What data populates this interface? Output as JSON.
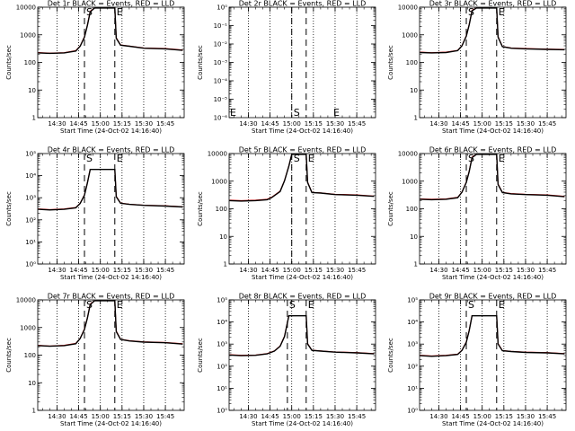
{
  "chart_data": [
    {
      "type": "line",
      "title": "Det 1r BLACK = Events, RED = LLD",
      "xlabel": "Start Time (24-Oct-02 14:16:40)",
      "ylabel": "Counts/sec",
      "scale": "log",
      "ytick_labels": [
        "1",
        "10",
        "100",
        "1000",
        "10000"
      ],
      "ylim": [
        1,
        15000
      ],
      "xtick_labels": [
        "14:30",
        "14:45",
        "15:00",
        "15:15",
        "15:30",
        "15:45"
      ],
      "markers": {
        "start": "S",
        "end": "E"
      },
      "vlines_dotted": [
        "14:30",
        "14:45",
        "15:00",
        "15:15",
        "15:30",
        "15:45"
      ],
      "vlines_dashed": [
        "14:49",
        "15:10"
      ],
      "series": [
        {
          "color": "#000000",
          "x": [
            "14:17",
            "14:25",
            "14:35",
            "14:43",
            "14:46",
            "14:49",
            "14:51",
            "14:53",
            "14:56",
            "15:00",
            "15:05",
            "15:08",
            "15:10",
            "15:11",
            "15:14",
            "15:20",
            "15:30",
            "15:45",
            "15:57"
          ],
          "y": [
            280,
            270,
            280,
            330,
            500,
            1100,
            3000,
            10000,
            14000,
            14000,
            14000,
            14000,
            14000,
            1000,
            550,
            500,
            420,
            400,
            350
          ]
        },
        {
          "color": "#e00000",
          "x": [
            "14:17",
            "14:25",
            "14:35",
            "14:43",
            "14:46",
            "14:49",
            "14:51",
            "14:53",
            "14:56",
            "15:00",
            "15:05",
            "15:08",
            "15:10",
            "15:11",
            "15:14",
            "15:20",
            "15:30",
            "15:45",
            "15:57"
          ],
          "y": [
            290,
            275,
            285,
            340,
            510,
            1150,
            3100,
            10500,
            14000,
            14000,
            14000,
            14000,
            14000,
            1050,
            560,
            510,
            430,
            410,
            360
          ]
        }
      ]
    },
    {
      "type": "line",
      "title": "Det 2r BLACK = Events, RED = LLD",
      "xlabel": "Start Time (24-Oct-02 14:16:40)",
      "ylabel": "Counts/sec",
      "scale": "log",
      "ytick_labels": [
        "10⁻⁶",
        "10⁻⁵",
        "10⁻⁴",
        "10⁻³",
        "10⁻²",
        "10⁻¹",
        "10⁰"
      ],
      "ylim": [
        1e-06,
        1
      ],
      "xtick_labels": [
        "14:30",
        "14:45",
        "15:00",
        "15:15",
        "15:30",
        "15:45"
      ],
      "markers": {
        "start": "S",
        "end": "E"
      },
      "vlines_dotted": [
        "14:30",
        "14:45",
        "15:00",
        "15:15",
        "15:30",
        "15:45"
      ],
      "vlines_dashed": [
        "15:00",
        "15:10"
      ],
      "series": []
    },
    {
      "type": "line",
      "title": "Det 3r BLACK = Events, RED = LLD",
      "xlabel": "Start Time (24-Oct-02 14:16:40)",
      "ylabel": "Counts/sec",
      "scale": "log",
      "ytick_labels": [
        "1",
        "10",
        "100",
        "1000",
        "10000"
      ],
      "ylim": [
        1,
        15000
      ],
      "xtick_labels": [
        "14:30",
        "14:45",
        "15:00",
        "15:15",
        "15:30",
        "15:45"
      ],
      "markers": {
        "start": "S",
        "end": "E"
      },
      "vlines_dotted": [
        "14:30",
        "14:45",
        "15:00",
        "15:15",
        "15:30",
        "15:45"
      ],
      "vlines_dashed": [
        "14:49",
        "15:10"
      ],
      "series": [
        {
          "color": "#000000",
          "x": [
            "14:17",
            "14:25",
            "14:35",
            "14:43",
            "14:46",
            "14:49",
            "14:51",
            "14:53",
            "14:56",
            "15:00",
            "15:05",
            "15:08",
            "15:10",
            "15:11",
            "15:14",
            "15:20",
            "15:30",
            "15:45",
            "15:57"
          ],
          "y": [
            290,
            280,
            290,
            340,
            520,
            1200,
            3200,
            11000,
            14000,
            14000,
            14000,
            14000,
            14000,
            1100,
            480,
            420,
            400,
            380,
            370
          ]
        },
        {
          "color": "#e00000",
          "x": [
            "14:17",
            "14:25",
            "14:35",
            "14:43",
            "14:46",
            "14:49",
            "14:51",
            "14:53",
            "14:56",
            "15:00",
            "15:05",
            "15:08",
            "15:10",
            "15:11",
            "15:14",
            "15:20",
            "15:30",
            "15:45",
            "15:57"
          ],
          "y": [
            300,
            285,
            300,
            350,
            530,
            1250,
            3300,
            11500,
            14000,
            14000,
            14000,
            14000,
            14000,
            1150,
            490,
            430,
            410,
            390,
            380
          ]
        }
      ]
    },
    {
      "type": "line",
      "title": "Det 4r BLACK = Events, RED = LLD",
      "xlabel": "Start Time (24-Oct-02 14:16:40)",
      "ylabel": "Counts/sec",
      "scale": "log",
      "ytick_labels": [
        "10⁰",
        "10¹",
        "10²",
        "10³",
        "10⁴",
        "10⁵"
      ],
      "ylim": [
        1,
        100000
      ],
      "xtick_labels": [
        "14:30",
        "14:45",
        "15:00",
        "15:15",
        "15:30",
        "15:45"
      ],
      "markers": {
        "start": "S",
        "end": "E"
      },
      "vlines_dotted": [
        "14:30",
        "14:45",
        "15:00",
        "15:15",
        "15:30",
        "15:45"
      ],
      "vlines_dashed": [
        "14:49",
        "15:10"
      ],
      "series": [
        {
          "color": "#000000",
          "x": [
            "14:17",
            "14:25",
            "14:35",
            "14:43",
            "14:46",
            "14:49",
            "14:51",
            "14:53",
            "15:08",
            "15:10",
            "15:11",
            "15:14",
            "15:20",
            "15:30",
            "15:45",
            "15:57"
          ],
          "y": [
            300,
            280,
            300,
            350,
            550,
            1300,
            4500,
            19000,
            19000,
            19000,
            1100,
            560,
            500,
            450,
            420,
            380
          ]
        },
        {
          "color": "#e00000",
          "x": [
            "14:17",
            "14:25",
            "14:35",
            "14:43",
            "14:46",
            "14:49",
            "14:51",
            "14:53",
            "15:08",
            "15:10",
            "15:11",
            "15:14",
            "15:20",
            "15:30",
            "15:45",
            "15:57"
          ],
          "y": [
            310,
            290,
            310,
            360,
            560,
            1350,
            4700,
            19500,
            19500,
            19500,
            1150,
            570,
            510,
            460,
            430,
            390
          ]
        }
      ]
    },
    {
      "type": "line",
      "title": "Det 5r BLACK = Events, RED = LLD",
      "xlabel": "Start Time (24-Oct-02 14:16:40)",
      "ylabel": "Counts/sec",
      "scale": "log",
      "ytick_labels": [
        "1",
        "10",
        "100",
        "1000",
        "10000"
      ],
      "ylim": [
        1,
        15000
      ],
      "xtick_labels": [
        "14:30",
        "14:45",
        "15:00",
        "15:15",
        "15:30",
        "15:45"
      ],
      "markers": {
        "start": "S",
        "end": "E"
      },
      "vlines_dotted": [
        "14:30",
        "14:45",
        "15:00",
        "15:15",
        "15:30",
        "15:45"
      ],
      "vlines_dashed": [
        "15:00",
        "15:10"
      ],
      "series": [
        {
          "color": "#000000",
          "x": [
            "14:17",
            "14:25",
            "14:35",
            "14:43",
            "14:46",
            "14:52",
            "14:55",
            "14:58",
            "15:00",
            "15:05",
            "15:08",
            "15:10",
            "15:11",
            "15:14",
            "15:20",
            "15:30",
            "15:45",
            "15:57"
          ],
          "y": [
            250,
            240,
            250,
            270,
            320,
            550,
            1400,
            5000,
            14000,
            14000,
            14000,
            14000,
            1200,
            500,
            480,
            420,
            400,
            360
          ]
        },
        {
          "color": "#e00000",
          "x": [
            "14:17",
            "14:25",
            "14:35",
            "14:43",
            "14:46",
            "14:52",
            "14:55",
            "14:58",
            "15:00",
            "15:05",
            "15:08",
            "15:10",
            "15:11",
            "15:14",
            "15:20",
            "15:30",
            "15:45",
            "15:57"
          ],
          "y": [
            260,
            250,
            260,
            280,
            330,
            570,
            1450,
            5200,
            14000,
            14000,
            14000,
            14000,
            1250,
            510,
            490,
            430,
            410,
            370
          ]
        }
      ]
    },
    {
      "type": "line",
      "title": "Det 6r BLACK = Events, RED = LLD",
      "xlabel": "Start Time (24-Oct-02 14:16:40)",
      "ylabel": "Counts/sec",
      "scale": "log",
      "ytick_labels": [
        "1",
        "10",
        "100",
        "1000",
        "10000"
      ],
      "ylim": [
        1,
        15000
      ],
      "xtick_labels": [
        "14:30",
        "14:45",
        "15:00",
        "15:15",
        "15:30",
        "15:45"
      ],
      "markers": {
        "start": "S",
        "end": "E"
      },
      "vlines_dotted": [
        "14:30",
        "14:45",
        "15:00",
        "15:15",
        "15:30",
        "15:45"
      ],
      "vlines_dashed": [
        "14:49",
        "15:10"
      ],
      "series": [
        {
          "color": "#000000",
          "x": [
            "14:17",
            "14:25",
            "14:35",
            "14:43",
            "14:46",
            "14:49",
            "14:51",
            "14:53",
            "14:56",
            "15:00",
            "15:05",
            "15:08",
            "15:10",
            "15:11",
            "15:14",
            "15:20",
            "15:30",
            "15:45",
            "15:57"
          ],
          "y": [
            280,
            270,
            280,
            320,
            520,
            1200,
            3100,
            10500,
            14000,
            14000,
            14000,
            14000,
            14000,
            1000,
            500,
            450,
            420,
            400,
            350
          ]
        },
        {
          "color": "#e00000",
          "x": [
            "14:17",
            "14:25",
            "14:35",
            "14:43",
            "14:46",
            "14:49",
            "14:51",
            "14:53",
            "14:56",
            "15:00",
            "15:05",
            "15:08",
            "15:10",
            "15:11",
            "15:14",
            "15:20",
            "15:30",
            "15:45",
            "15:57"
          ],
          "y": [
            290,
            280,
            290,
            330,
            530,
            1250,
            3200,
            11000,
            14000,
            14000,
            14000,
            14000,
            14000,
            1050,
            510,
            460,
            430,
            410,
            360
          ]
        }
      ]
    },
    {
      "type": "line",
      "title": "Det 7r BLACK = Events, RED = LLD",
      "xlabel": "Start Time (24-Oct-02 14:16:40)",
      "ylabel": "Counts/sec",
      "scale": "log",
      "ytick_labels": [
        "1",
        "10",
        "100",
        "1000",
        "10000"
      ],
      "ylim": [
        1,
        15000
      ],
      "xtick_labels": [
        "14:30",
        "14:45",
        "15:00",
        "15:15",
        "15:30",
        "15:45"
      ],
      "markers": {
        "start": "S",
        "end": "E"
      },
      "vlines_dotted": [
        "14:30",
        "14:45",
        "15:00",
        "15:15",
        "15:30",
        "15:45"
      ],
      "vlines_dashed": [
        "14:49",
        "15:10"
      ],
      "series": [
        {
          "color": "#000000",
          "x": [
            "14:17",
            "14:25",
            "14:35",
            "14:43",
            "14:46",
            "14:49",
            "14:51",
            "14:53",
            "14:56",
            "15:00",
            "15:05",
            "15:08",
            "15:10",
            "15:11",
            "15:14",
            "15:20",
            "15:30",
            "15:45",
            "15:57"
          ],
          "y": [
            280,
            265,
            280,
            330,
            520,
            1150,
            3000,
            10000,
            14000,
            14000,
            14000,
            14000,
            14000,
            950,
            480,
            420,
            380,
            360,
            320
          ]
        },
        {
          "color": "#e00000",
          "x": [
            "14:17",
            "14:25",
            "14:35",
            "14:43",
            "14:46",
            "14:49",
            "14:51",
            "14:53",
            "14:56",
            "15:00",
            "15:05",
            "15:08",
            "15:10",
            "15:11",
            "15:14",
            "15:20",
            "15:30",
            "15:45",
            "15:57"
          ],
          "y": [
            290,
            270,
            290,
            340,
            530,
            1200,
            3100,
            10500,
            14000,
            14000,
            14000,
            14000,
            14000,
            1000,
            490,
            430,
            390,
            370,
            330
          ]
        }
      ]
    },
    {
      "type": "line",
      "title": "Det 8r BLACK = Events, RED = LLD",
      "xlabel": "Start Time (24-Oct-02 14:16:40)",
      "ylabel": "Counts/sec",
      "scale": "log",
      "ytick_labels": [
        "10⁰",
        "10¹",
        "10²",
        "10³",
        "10⁴",
        "10⁵"
      ],
      "ylim": [
        1,
        100000
      ],
      "xtick_labels": [
        "14:30",
        "14:45",
        "15:00",
        "15:15",
        "15:30",
        "15:45"
      ],
      "markers": {
        "start": "S",
        "end": "E"
      },
      "vlines_dotted": [
        "14:30",
        "14:45",
        "15:00",
        "15:15",
        "15:30",
        "15:45"
      ],
      "vlines_dashed": [
        "14:57",
        "15:10"
      ],
      "series": [
        {
          "color": "#000000",
          "x": [
            "14:17",
            "14:25",
            "14:35",
            "14:43",
            "14:48",
            "14:52",
            "14:55",
            "14:58",
            "15:08",
            "15:10",
            "15:11",
            "15:14",
            "15:20",
            "15:30",
            "15:45",
            "15:57"
          ],
          "y": [
            320,
            300,
            310,
            360,
            480,
            800,
            2200,
            19000,
            19000,
            19000,
            1000,
            520,
            480,
            430,
            400,
            360
          ]
        },
        {
          "color": "#e00000",
          "x": [
            "14:17",
            "14:25",
            "14:35",
            "14:43",
            "14:48",
            "14:52",
            "14:55",
            "14:58",
            "15:08",
            "15:10",
            "15:11",
            "15:14",
            "15:20",
            "15:30",
            "15:45",
            "15:57"
          ],
          "y": [
            330,
            310,
            320,
            370,
            490,
            820,
            2300,
            19500,
            19500,
            19500,
            1050,
            530,
            490,
            440,
            410,
            370
          ]
        }
      ]
    },
    {
      "type": "line",
      "title": "Det 9r BLACK = Events, RED = LLD",
      "xlabel": "Start Time (24-Oct-02 14:16:40)",
      "ylabel": "Counts/sec",
      "scale": "log",
      "ytick_labels": [
        "10⁰",
        "10¹",
        "10²",
        "10³",
        "10⁴",
        "10⁵"
      ],
      "ylim": [
        1,
        100000
      ],
      "xtick_labels": [
        "14:30",
        "14:45",
        "15:00",
        "15:15",
        "15:30",
        "15:45"
      ],
      "markers": {
        "start": "S",
        "end": "E"
      },
      "vlines_dotted": [
        "14:30",
        "14:45",
        "15:00",
        "15:15",
        "15:30",
        "15:45"
      ],
      "vlines_dashed": [
        "14:49",
        "15:10"
      ],
      "series": [
        {
          "color": "#000000",
          "x": [
            "14:17",
            "14:25",
            "14:35",
            "14:43",
            "14:46",
            "14:49",
            "14:51",
            "14:53",
            "15:08",
            "15:10",
            "15:11",
            "15:14",
            "15:20",
            "15:30",
            "15:45",
            "15:57"
          ],
          "y": [
            300,
            280,
            300,
            340,
            520,
            1200,
            4000,
            19000,
            19000,
            19000,
            1000,
            500,
            460,
            420,
            400,
            360
          ]
        },
        {
          "color": "#e00000",
          "x": [
            "14:17",
            "14:25",
            "14:35",
            "14:43",
            "14:46",
            "14:49",
            "14:51",
            "14:53",
            "15:08",
            "15:10",
            "15:11",
            "15:14",
            "15:20",
            "15:30",
            "15:45",
            "15:57"
          ],
          "y": [
            310,
            290,
            310,
            350,
            530,
            1250,
            4200,
            19500,
            19500,
            19500,
            1050,
            510,
            470,
            430,
            410,
            370
          ]
        }
      ]
    }
  ]
}
